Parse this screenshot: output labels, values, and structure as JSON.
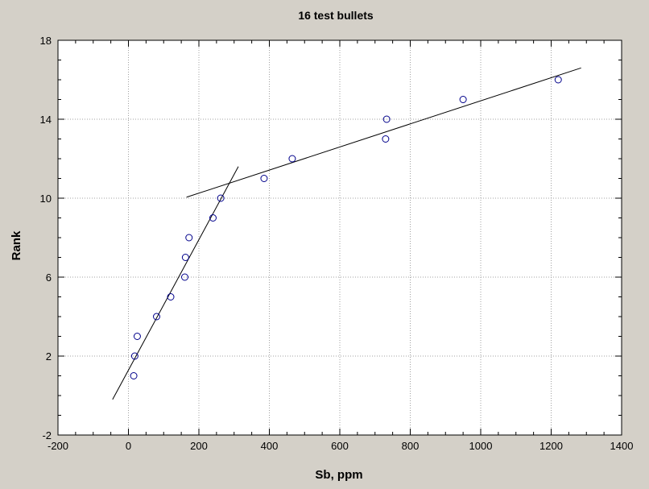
{
  "chart_data": {
    "type": "scatter",
    "title": "16 test bullets",
    "xlabel": "Sb, ppm",
    "ylabel": "Rank",
    "xlim": [
      -200,
      1400
    ],
    "ylim": [
      -2,
      18
    ],
    "x_ticks": [
      -200,
      0,
      200,
      400,
      600,
      800,
      1000,
      1200,
      1400
    ],
    "y_ticks": [
      -2,
      2,
      6,
      10,
      14,
      18
    ],
    "grid": true,
    "points": [
      {
        "x": 15,
        "y": 1
      },
      {
        "x": 18,
        "y": 2
      },
      {
        "x": 25,
        "y": 3
      },
      {
        "x": 80,
        "y": 4
      },
      {
        "x": 120,
        "y": 5
      },
      {
        "x": 160,
        "y": 6
      },
      {
        "x": 162,
        "y": 7
      },
      {
        "x": 172,
        "y": 8
      },
      {
        "x": 240,
        "y": 9
      },
      {
        "x": 262,
        "y": 10
      },
      {
        "x": 385,
        "y": 11
      },
      {
        "x": 465,
        "y": 12
      },
      {
        "x": 730,
        "y": 13
      },
      {
        "x": 733,
        "y": 14
      },
      {
        "x": 950,
        "y": 15
      },
      {
        "x": 1220,
        "y": 16
      }
    ],
    "fit_lines": [
      {
        "x1": -45,
        "y1": -0.2,
        "x2": 312,
        "y2": 11.6
      },
      {
        "x1": 165,
        "y1": 10.05,
        "x2": 1285,
        "y2": 16.6
      }
    ],
    "colors": {
      "background": "#d4d0c8",
      "plot_background": "#ffffff",
      "point_stroke": "#00008b",
      "line": "#000000",
      "grid": "#a0a0a0"
    }
  }
}
